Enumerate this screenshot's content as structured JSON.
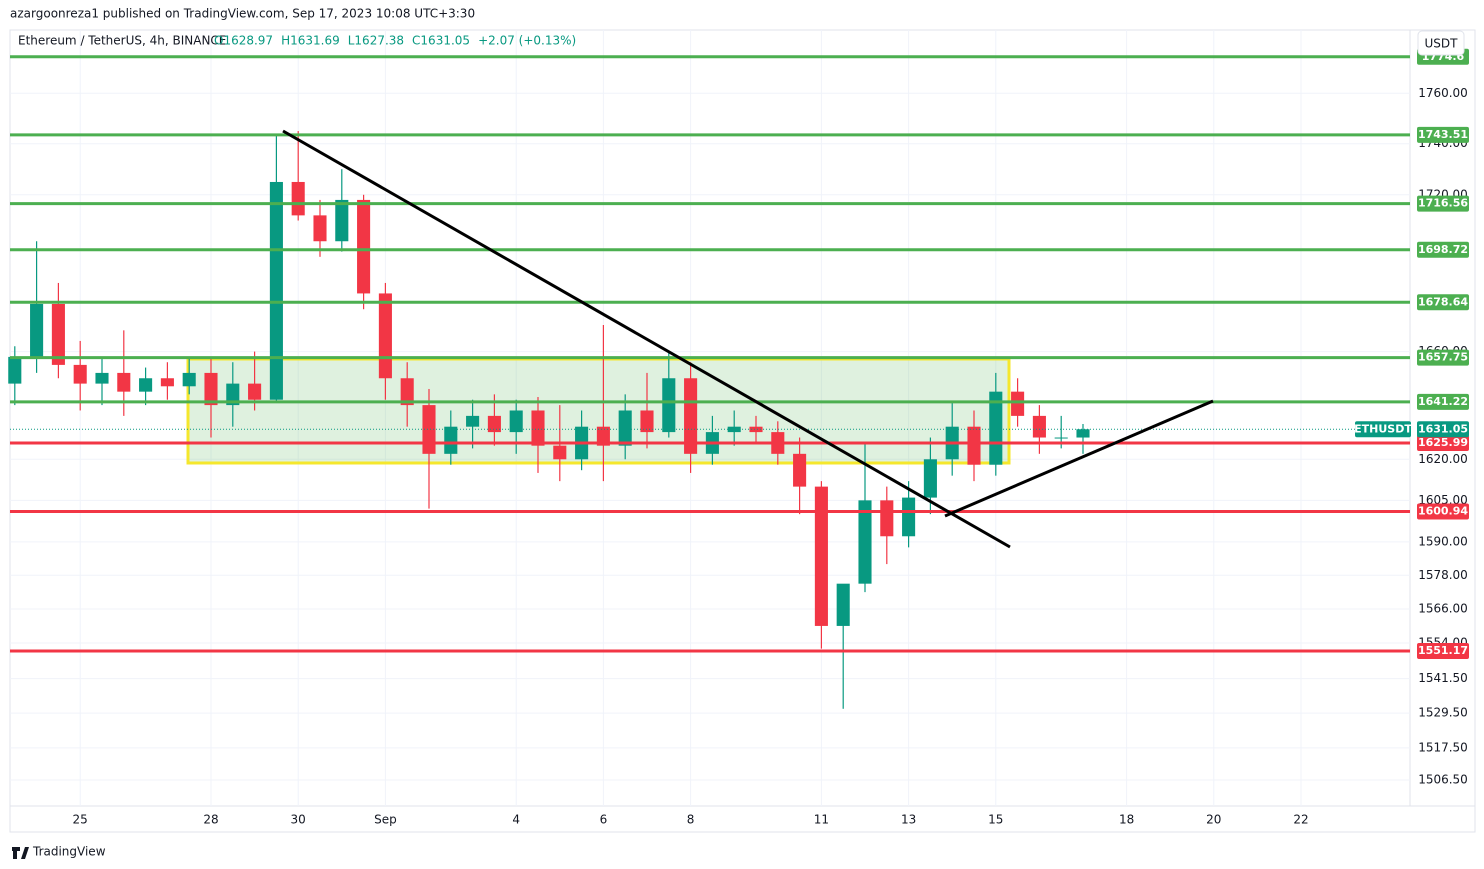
{
  "publisher": "azargoonreza1 published on TradingView.com, Sep 17, 2023 10:08 UTC+3:30",
  "brand": "TradingView",
  "chart_data": {
    "type": "candlestick",
    "title": "Ethereum / TetherUS, 4h, BINANCE",
    "legend_values": [
      "O1628.97",
      "H1631.69",
      "L1627.38",
      "C1631.05",
      "+2.07 (+0.13%)"
    ],
    "currency": "USDT",
    "symbol": "ETHUSDT",
    "log_scale": true,
    "grid": true,
    "up_color": "#089981",
    "down_color": "#f23645",
    "xlim": [
      23.39,
      55.5
    ],
    "ylim": [
      1499.7,
      1785.4
    ],
    "xticks": [
      25,
      28,
      30,
      {
        "value": 32,
        "label": "Sep"
      },
      {
        "value": 35,
        "label": "4"
      },
      {
        "value": 37,
        "label": "6"
      },
      {
        "value": 39,
        "label": "8"
      },
      {
        "value": 42,
        "label": "11"
      },
      {
        "value": 44,
        "label": "13"
      },
      {
        "value": 46,
        "label": "15"
      },
      {
        "value": 49,
        "label": "18"
      },
      {
        "value": 51,
        "label": "20"
      },
      {
        "value": 53,
        "label": "22"
      }
    ],
    "yticks": [
      {
        "value": 1760,
        "label": "1760.00"
      },
      {
        "value": 1740,
        "label": "1740.00"
      },
      {
        "value": 1720,
        "label": "1720.00"
      },
      {
        "value": 1660,
        "label": "1660.00"
      },
      {
        "value": 1620,
        "label": "1620.00"
      },
      {
        "value": 1605,
        "label": "1605.00"
      },
      {
        "value": 1590,
        "label": "1590.00"
      },
      {
        "value": 1578,
        "label": "1578.00"
      },
      {
        "value": 1566,
        "label": "1566.00"
      },
      {
        "value": 1554,
        "label": "1554.00"
      },
      {
        "value": 1541.5,
        "label": "1541.50"
      },
      {
        "value": 1529.5,
        "label": "1529.50"
      },
      {
        "value": 1517.5,
        "label": "1517.50"
      },
      {
        "value": 1506.5,
        "label": "1506.50"
      }
    ],
    "levels": [
      {
        "value": 1774.6,
        "color": "#4caf50"
      },
      {
        "value": 1743.51,
        "color": "#4caf50"
      },
      {
        "value": 1716.56,
        "color": "#4caf50"
      },
      {
        "value": 1698.72,
        "color": "#4caf50"
      },
      {
        "value": 1678.64,
        "color": "#4caf50"
      },
      {
        "value": 1657.75,
        "color": "#4caf50"
      },
      {
        "value": 1641.22,
        "color": "#4caf50"
      },
      {
        "value": 1625.99,
        "color": "#f23645"
      },
      {
        "value": 1600.94,
        "color": "#f23645"
      },
      {
        "value": 1551.17,
        "color": "#f23645"
      }
    ],
    "candles": {
      "x": [
        23.5,
        24,
        24.5,
        25,
        25.5,
        26,
        26.5,
        27,
        27.5,
        28,
        28.5,
        29,
        29.5,
        30,
        30.5,
        31,
        31.5,
        32,
        32.5,
        33,
        33.5,
        34,
        34.5,
        35,
        35.5,
        36,
        36.5,
        37,
        37.5,
        38,
        38.5,
        39,
        39.5,
        40,
        40.5,
        41,
        41.5,
        42,
        42.5,
        43,
        43.5,
        44,
        44.5,
        45,
        45.5,
        46,
        46.5,
        47,
        47.5,
        48
      ],
      "open": [
        1648,
        1658,
        1678,
        1655,
        1648,
        1652,
        1645,
        1650,
        1647,
        1652,
        1640,
        1648,
        1642,
        1725,
        1712,
        1702,
        1718,
        1682,
        1650,
        1640,
        1622,
        1632,
        1636,
        1630,
        1638,
        1625,
        1620,
        1632,
        1625,
        1638,
        1630,
        1650,
        1622,
        1630,
        1632,
        1630,
        1622,
        1610,
        1560,
        1575,
        1605,
        1592,
        1606,
        1620,
        1632,
        1618,
        1645,
        1636,
        1628,
        1628
      ],
      "high": [
        1662,
        1702,
        1686,
        1664,
        1658,
        1668,
        1654,
        1656,
        1658,
        1658,
        1656,
        1660,
        1744,
        1745,
        1718,
        1730,
        1720,
        1686,
        1656,
        1646,
        1638,
        1642,
        1644,
        1642,
        1643,
        1640,
        1638,
        1670,
        1644,
        1652,
        1660,
        1656,
        1636,
        1638,
        1636,
        1634,
        1628,
        1612,
        1564,
        1626,
        1610,
        1612,
        1628,
        1641,
        1638,
        1652,
        1650,
        1640,
        1636,
        1633
      ],
      "low": [
        1640,
        1652,
        1650,
        1638,
        1640,
        1636,
        1640,
        1642,
        1644,
        1628,
        1632,
        1638,
        1641,
        1710,
        1696,
        1698,
        1676,
        1642,
        1632,
        1602,
        1618,
        1624,
        1625,
        1622,
        1615,
        1612,
        1616,
        1612,
        1620,
        1624,
        1628,
        1615,
        1618,
        1625,
        1626,
        1618,
        1600,
        1552,
        1531,
        1572,
        1582,
        1588,
        1600,
        1614,
        1612,
        1614,
        1632,
        1622,
        1624,
        1622
      ],
      "close": [
        1658,
        1678,
        1655,
        1648,
        1652,
        1645,
        1650,
        1647,
        1652,
        1640,
        1648,
        1642,
        1725,
        1712,
        1702,
        1718,
        1682,
        1650,
        1640,
        1622,
        1632,
        1636,
        1630,
        1638,
        1625,
        1620,
        1632,
        1625,
        1638,
        1630,
        1650,
        1622,
        1630,
        1632,
        1630,
        1622,
        1610,
        1560,
        1575,
        1605,
        1592,
        1606,
        1620,
        1632,
        1618,
        1645,
        1636,
        1628,
        1628,
        1631.05
      ]
    }
  }
}
